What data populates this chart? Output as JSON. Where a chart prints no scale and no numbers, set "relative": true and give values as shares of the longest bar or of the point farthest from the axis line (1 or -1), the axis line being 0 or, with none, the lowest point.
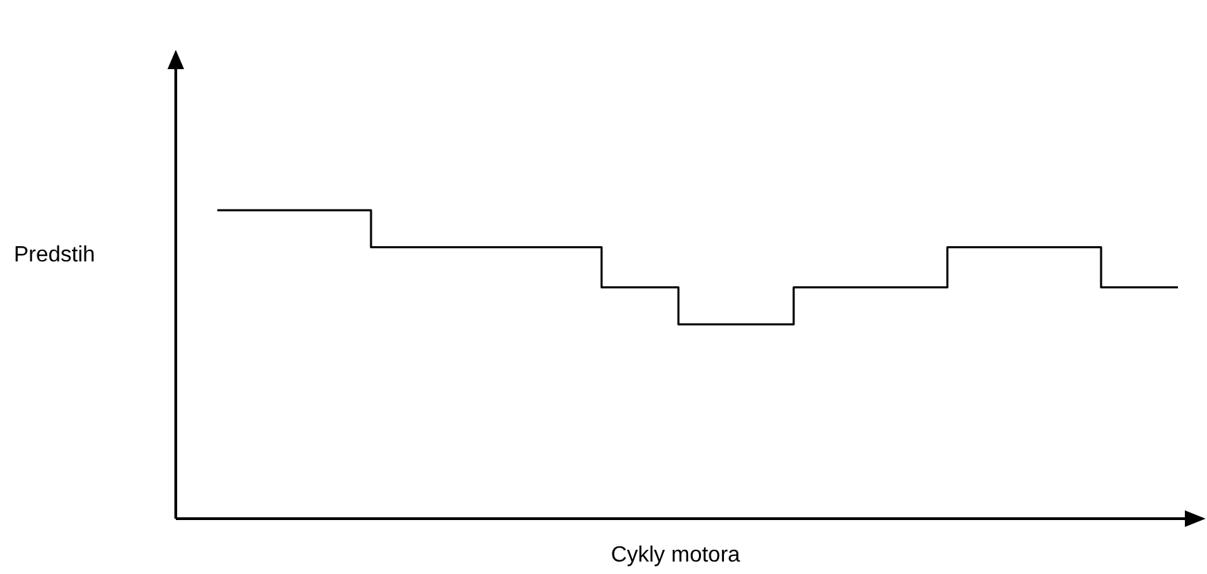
{
  "chart_data": {
    "type": "step",
    "relative": true,
    "xlabel": "Cykly motora",
    "ylabel": "Predstih",
    "categories": [
      null,
      null,
      null,
      null,
      null,
      null,
      null,
      null,
      null,
      null,
      null,
      null,
      null,
      null,
      null,
      null,
      null,
      null,
      null,
      null,
      null,
      null,
      null,
      null,
      null,
      null
    ],
    "series": [
      {
        "color": "#000000",
        "values": [
          1,
          1,
          1,
          1,
          0.88,
          0.88,
          0.88,
          0.88,
          0.88,
          0.88,
          0.75,
          0.75,
          0.63,
          0.63,
          0.63,
          0.75,
          0.75,
          0.75,
          0.75,
          0.88,
          0.88,
          0.88,
          0.88,
          0.75,
          0.75,
          0.75
        ]
      }
    ],
    "line_style": "solid"
  }
}
